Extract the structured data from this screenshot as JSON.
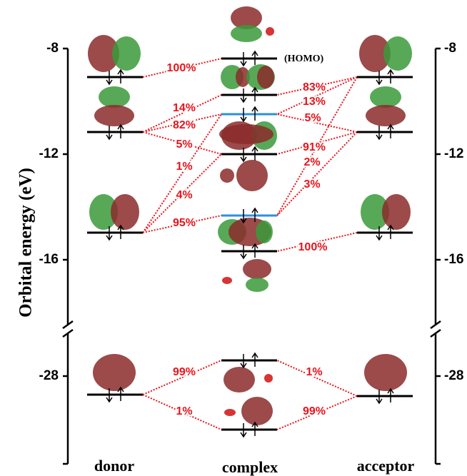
{
  "axis": {
    "label": "Orbital energy (eV)",
    "ticks_upper": [
      -8,
      -12,
      -16
    ],
    "ticks_lower": [
      -28
    ]
  },
  "homo_label": "(HOMO)",
  "columns": [
    "donor",
    "complex",
    "acceptor"
  ],
  "percentages": [
    "100%",
    "14%",
    "82%",
    "5%",
    "1%",
    "4%",
    "95%",
    "83%",
    "13%",
    "5%",
    "91%",
    "2%",
    "3%",
    "100%",
    "99%",
    "1%",
    "1%",
    "99%"
  ]
}
